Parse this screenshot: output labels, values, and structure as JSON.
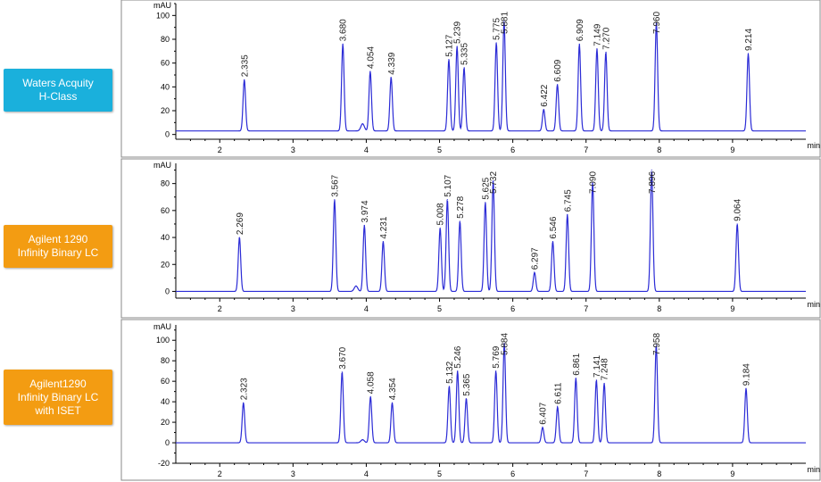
{
  "colors": {
    "trace": "#2B2BD6",
    "label_blue": "#1AB0DC",
    "label_orange": "#F39C12",
    "axis": "#000000"
  },
  "chart_data": [
    {
      "type": "line",
      "instrument_label_lines": [
        "Waters Acquity",
        "H-Class"
      ],
      "label_color": "#1AB0DC",
      "ylabel": "mAU",
      "xunit": "min",
      "xlim": [
        1.4,
        10.0
      ],
      "ylim": [
        -4,
        110
      ],
      "yticks": [
        0,
        20,
        40,
        60,
        80,
        100
      ],
      "xticks": [
        2,
        3,
        4,
        5,
        6,
        7,
        8,
        9
      ],
      "baseline": 3,
      "peaks": [
        {
          "rt": 2.335,
          "label": "2.335",
          "height": 43
        },
        {
          "rt": 3.68,
          "label": "3.680",
          "height": 73
        },
        {
          "rt": 3.95,
          "label": "",
          "height": 6
        },
        {
          "rt": 4.054,
          "label": "4.054",
          "height": 50
        },
        {
          "rt": 4.339,
          "label": "4.339",
          "height": 45
        },
        {
          "rt": 5.127,
          "label": "5.127",
          "height": 60
        },
        {
          "rt": 5.239,
          "label": "5.239",
          "height": 71
        },
        {
          "rt": 5.335,
          "label": "5.335",
          "height": 53
        },
        {
          "rt": 5.775,
          "label": "5.775",
          "height": 74
        },
        {
          "rt": 5.881,
          "label": "5.881",
          "height": 92
        },
        {
          "rt": 6.422,
          "label": "6.422",
          "height": 18
        },
        {
          "rt": 6.609,
          "label": "6.609",
          "height": 39
        },
        {
          "rt": 6.909,
          "label": "6.909",
          "height": 73
        },
        {
          "rt": 7.149,
          "label": "7.149",
          "height": 69
        },
        {
          "rt": 7.27,
          "label": "7.270",
          "height": 66
        },
        {
          "rt": 7.96,
          "label": "7.960",
          "height": 91
        },
        {
          "rt": 9.214,
          "label": "9.214",
          "height": 65
        }
      ]
    },
    {
      "type": "line",
      "instrument_label_lines": [
        "Agilent 1290",
        "Infinity Binary LC"
      ],
      "label_color": "#F39C12",
      "ylabel": "mAU",
      "xunit": "min",
      "xlim": [
        1.4,
        10.0
      ],
      "ylim": [
        -5,
        95
      ],
      "yticks": [
        0,
        20,
        40,
        60,
        80
      ],
      "xticks": [
        2,
        3,
        4,
        5,
        6,
        7,
        8,
        9
      ],
      "baseline": 0,
      "peaks": [
        {
          "rt": 2.269,
          "label": "2.269",
          "height": 40
        },
        {
          "rt": 3.567,
          "label": "3.567",
          "height": 68
        },
        {
          "rt": 3.86,
          "label": "",
          "height": 4
        },
        {
          "rt": 3.974,
          "label": "3.974",
          "height": 49
        },
        {
          "rt": 4.231,
          "label": "4.231",
          "height": 37
        },
        {
          "rt": 5.008,
          "label": "5.008",
          "height": 47
        },
        {
          "rt": 5.107,
          "label": "5.107",
          "height": 68
        },
        {
          "rt": 5.278,
          "label": "5.278",
          "height": 52
        },
        {
          "rt": 5.625,
          "label": "5.625",
          "height": 66
        },
        {
          "rt": 5.732,
          "label": "5.732",
          "height": 82
        },
        {
          "rt": 6.297,
          "label": "6.297",
          "height": 14
        },
        {
          "rt": 6.546,
          "label": "6.546",
          "height": 37
        },
        {
          "rt": 6.745,
          "label": "6.745",
          "height": 57
        },
        {
          "rt": 7.09,
          "label": "7.090",
          "height": 81
        },
        {
          "rt": 7.896,
          "label": "7.896",
          "height": 90
        },
        {
          "rt": 9.064,
          "label": "9.064",
          "height": 50
        }
      ]
    },
    {
      "type": "line",
      "instrument_label_lines": [
        "Agilent1290",
        "Infinity Binary LC",
        "with ISET"
      ],
      "label_color": "#F39C12",
      "ylabel": "mAU",
      "xunit": "min",
      "xlim": [
        1.4,
        10.0
      ],
      "ylim": [
        -20,
        115
      ],
      "yticks": [
        -20,
        0,
        20,
        40,
        60,
        80,
        100
      ],
      "xticks": [
        2,
        3,
        4,
        5,
        6,
        7,
        8,
        9
      ],
      "baseline": 0,
      "peaks": [
        {
          "rt": 2.323,
          "label": "2.323",
          "height": 39
        },
        {
          "rt": 3.67,
          "label": "3.670",
          "height": 69
        },
        {
          "rt": 3.95,
          "label": "",
          "height": 3
        },
        {
          "rt": 4.058,
          "label": "4.058",
          "height": 45
        },
        {
          "rt": 4.354,
          "label": "4.354",
          "height": 39
        },
        {
          "rt": 5.132,
          "label": "5.132",
          "height": 55
        },
        {
          "rt": 5.246,
          "label": "5.246",
          "height": 70
        },
        {
          "rt": 5.365,
          "label": "5.365",
          "height": 43
        },
        {
          "rt": 5.769,
          "label": "5.769",
          "height": 70
        },
        {
          "rt": 5.884,
          "label": "5.884",
          "height": 97
        },
        {
          "rt": 6.407,
          "label": "6.407",
          "height": 15
        },
        {
          "rt": 6.611,
          "label": "6.611",
          "height": 35
        },
        {
          "rt": 6.861,
          "label": "6.861",
          "height": 63
        },
        {
          "rt": 7.141,
          "label": "7.141",
          "height": 61
        },
        {
          "rt": 7.248,
          "label": "7.248",
          "height": 58
        },
        {
          "rt": 7.958,
          "label": "7.958",
          "height": 95
        },
        {
          "rt": 9.184,
          "label": "9.184",
          "height": 53
        }
      ]
    }
  ]
}
